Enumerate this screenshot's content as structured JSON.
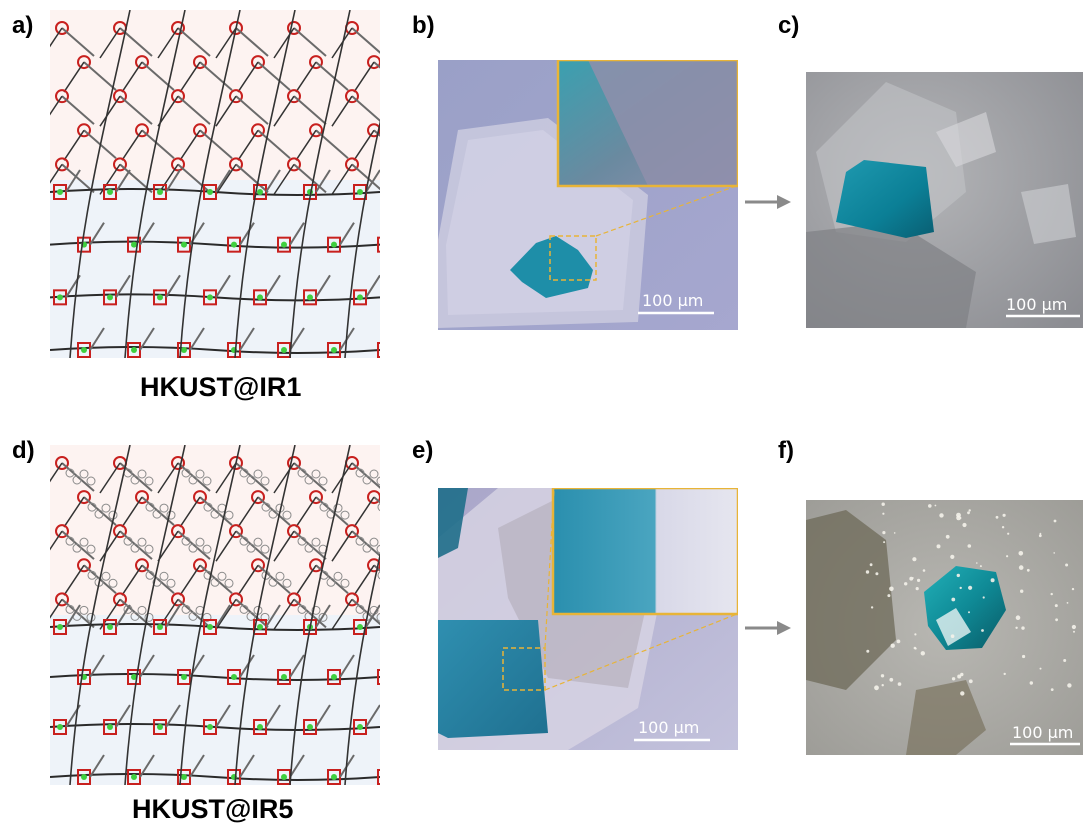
{
  "panel_labels": {
    "a": "a)",
    "b": "b)",
    "c": "c)",
    "d": "d)",
    "e": "e)",
    "f": "f)"
  },
  "captions": {
    "top": "HKUST@IR1",
    "bottom": "HKUST@IR5"
  },
  "scale_bars": {
    "b": "100 μm",
    "c": "100 μm",
    "e": "100 μm",
    "f": "100 μm"
  },
  "colors": {
    "inset_border": "#e8b437",
    "crystal_blue": "#1e8ea8",
    "oxygen_red": "#c8201e",
    "copper_green": "#3fcf3f",
    "bond_gray": "#6a6a6a",
    "arrow_gray": "#8a8a8a"
  }
}
